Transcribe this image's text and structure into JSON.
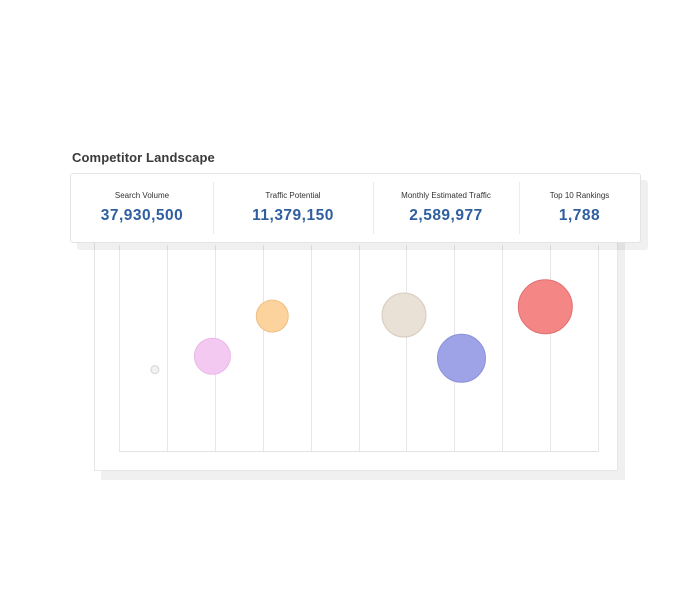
{
  "section": {
    "title": "Competitor Landscape"
  },
  "metrics": [
    {
      "label": "Search Volume",
      "value": "37,930,500"
    },
    {
      "label": "Traffic Potential",
      "value": "11,379,150"
    },
    {
      "label": "Monthly Estimated Traffic",
      "value": "2,589,977"
    },
    {
      "label": "Top 10 Rankings",
      "value": "1,788"
    }
  ],
  "colors": {
    "value_text": "#2f5f9e",
    "title_text": "#3a3a3a"
  },
  "chart_data": {
    "type": "scatter",
    "grid": true,
    "xlim": [
      0,
      10
    ],
    "ylim": [
      0,
      10
    ],
    "series": [
      {
        "x": 0.75,
        "y": 3.95,
        "size": 4,
        "color": "#f1f1f1",
        "stroke": "#d4d4d4"
      },
      {
        "x": 1.95,
        "y": 4.6,
        "size": 18,
        "color": "#f3c9f2",
        "stroke": "#ebb6ea"
      },
      {
        "x": 3.2,
        "y": 6.55,
        "size": 16,
        "color": "#fdd39d",
        "stroke": "#eebf85"
      },
      {
        "x": 5.95,
        "y": 6.6,
        "size": 22,
        "color": "#e9e0d6",
        "stroke": "#d8ccbf"
      },
      {
        "x": 7.15,
        "y": 4.5,
        "size": 24,
        "color": "#9ea2e6",
        "stroke": "#8c90d9"
      },
      {
        "x": 8.9,
        "y": 7.0,
        "size": 27,
        "color": "#f58686",
        "stroke": "#e06f6f"
      }
    ]
  }
}
